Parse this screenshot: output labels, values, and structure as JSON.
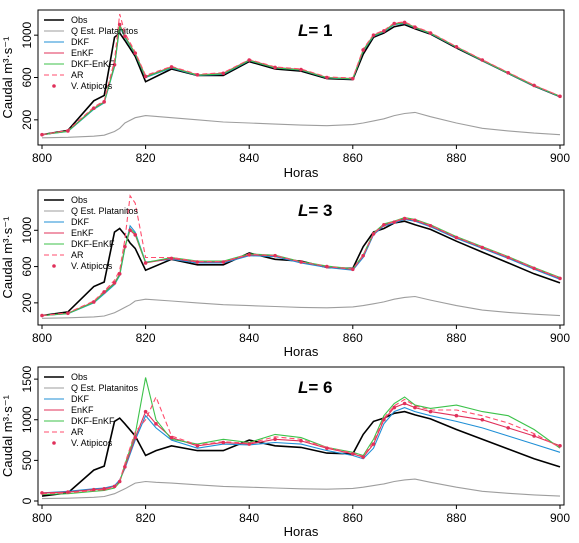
{
  "chart_data": [
    {
      "type": "line",
      "panel_label_var": "L",
      "panel_label_value": "= 1",
      "xlabel": "Horas",
      "ylabel": "Caudal m³·s⁻¹",
      "xlim": [
        800,
        900
      ],
      "ylim": [
        0,
        1200
      ],
      "xticks": [
        800,
        820,
        840,
        860,
        880,
        900
      ],
      "yticks": [
        200,
        600,
        1000
      ],
      "legend_position": "top-left",
      "x": [
        800,
        805,
        810,
        812,
        814,
        815,
        816,
        818,
        820,
        825,
        830,
        835,
        840,
        845,
        850,
        855,
        860,
        862,
        864,
        866,
        868,
        870,
        872,
        875,
        880,
        885,
        890,
        895,
        900
      ],
      "series": [
        {
          "name": "Obs",
          "color": "#000000",
          "dash": "solid",
          "values": [
            60,
            100,
            380,
            430,
            980,
            1020,
            950,
            800,
            560,
            680,
            620,
            620,
            750,
            680,
            660,
            590,
            580,
            820,
            980,
            1020,
            1080,
            1100,
            1060,
            1010,
            880,
            760,
            640,
            520,
            420
          ]
        },
        {
          "name": "Q Est. Platanitos",
          "color": "#9e9e9e",
          "dash": "solid",
          "values": [
            30,
            35,
            45,
            55,
            90,
            120,
            170,
            220,
            240,
            220,
            200,
            180,
            170,
            160,
            150,
            145,
            155,
            170,
            190,
            210,
            240,
            260,
            270,
            230,
            170,
            120,
            95,
            75,
            60
          ]
        },
        {
          "name": "DKF",
          "color": "#1f8fd6",
          "dash": "solid",
          "values": [
            60,
            90,
            300,
            360,
            700,
            1080,
            980,
            820,
            600,
            690,
            620,
            630,
            760,
            690,
            670,
            595,
            585,
            850,
            990,
            1030,
            1100,
            1110,
            1070,
            1015,
            885,
            760,
            640,
            520,
            420
          ]
        },
        {
          "name": "EnKF",
          "color": "#e0305a",
          "dash": "solid",
          "values": [
            60,
            95,
            310,
            370,
            720,
            1100,
            990,
            830,
            610,
            700,
            625,
            640,
            765,
            695,
            675,
            600,
            590,
            860,
            1000,
            1040,
            1110,
            1120,
            1075,
            1020,
            890,
            765,
            645,
            525,
            422
          ]
        },
        {
          "name": "DKF-EnKF",
          "color": "#3cc24a",
          "dash": "solid",
          "values": [
            60,
            92,
            305,
            365,
            710,
            1090,
            985,
            825,
            605,
            695,
            622,
            635,
            762,
            692,
            672,
            598,
            588,
            855,
            995,
            1035,
            1105,
            1115,
            1072,
            1018,
            888,
            762,
            642,
            522,
            421
          ]
        },
        {
          "name": "AR",
          "color": "#ff4d6d",
          "dash": "dashed",
          "values": [
            60,
            100,
            320,
            380,
            760,
            1200,
            1020,
            840,
            620,
            705,
            630,
            645,
            770,
            700,
            680,
            605,
            595,
            870,
            1005,
            1045,
            1115,
            1125,
            1080,
            1025,
            892,
            768,
            648,
            528,
            424
          ]
        },
        {
          "name": "V. Atipicos",
          "color": "#e0305a",
          "dash": "points",
          "values": [
            60,
            95,
            310,
            370,
            720,
            1100,
            990,
            830,
            610,
            700,
            625,
            640,
            765,
            695,
            675,
            600,
            590,
            860,
            1000,
            1040,
            1110,
            1120,
            1075,
            1020,
            890,
            765,
            645,
            525,
            422
          ]
        }
      ]
    },
    {
      "type": "line",
      "panel_label_var": "L",
      "panel_label_value": "= 3",
      "xlabel": "Horas",
      "ylabel": "Caudal m³·s⁻¹",
      "xlim": [
        800,
        900
      ],
      "ylim": [
        0,
        1400
      ],
      "xticks": [
        800,
        820,
        840,
        860,
        880,
        900
      ],
      "yticks": [
        200,
        600,
        1000
      ],
      "legend_position": "top-left",
      "x": [
        800,
        805,
        810,
        812,
        814,
        815,
        816,
        817,
        818,
        820,
        825,
        830,
        835,
        840,
        845,
        850,
        855,
        860,
        862,
        864,
        866,
        868,
        870,
        872,
        875,
        880,
        885,
        890,
        895,
        900
      ],
      "series": [
        {
          "name": "Obs",
          "color": "#000000",
          "dash": "solid",
          "values": [
            60,
            100,
            380,
            430,
            980,
            1020,
            950,
            860,
            800,
            560,
            680,
            620,
            620,
            750,
            680,
            660,
            590,
            580,
            820,
            980,
            1020,
            1080,
            1100,
            1060,
            1010,
            880,
            760,
            640,
            520,
            420
          ]
        },
        {
          "name": "Q Est. Platanitos",
          "color": "#9e9e9e",
          "dash": "solid",
          "values": [
            30,
            35,
            45,
            55,
            90,
            120,
            150,
            180,
            220,
            240,
            220,
            200,
            180,
            170,
            160,
            150,
            145,
            155,
            170,
            190,
            210,
            240,
            260,
            270,
            230,
            170,
            120,
            95,
            75,
            60
          ]
        },
        {
          "name": "DKF",
          "color": "#1f8fd6",
          "dash": "solid",
          "values": [
            60,
            80,
            200,
            300,
            400,
            500,
            800,
            1050,
            980,
            650,
            680,
            640,
            640,
            720,
            710,
            640,
            590,
            560,
            700,
            950,
            1050,
            1080,
            1120,
            1100,
            1040,
            910,
            800,
            690,
            570,
            460
          ]
        },
        {
          "name": "EnKF",
          "color": "#e0305a",
          "dash": "solid",
          "values": [
            60,
            85,
            210,
            320,
            420,
            520,
            820,
            1000,
            950,
            640,
            690,
            650,
            650,
            730,
            720,
            650,
            600,
            570,
            720,
            960,
            1060,
            1090,
            1130,
            1110,
            1050,
            920,
            810,
            700,
            580,
            470
          ]
        },
        {
          "name": "DKF-EnKF",
          "color": "#3cc24a",
          "dash": "solid",
          "values": [
            60,
            82,
            205,
            310,
            410,
            510,
            810,
            1020,
            965,
            645,
            700,
            660,
            660,
            740,
            725,
            655,
            605,
            575,
            730,
            970,
            1070,
            1100,
            1140,
            1120,
            1060,
            930,
            820,
            710,
            590,
            480
          ]
        },
        {
          "name": "AR",
          "color": "#ff4d6d",
          "dash": "dashed",
          "values": [
            60,
            90,
            220,
            330,
            450,
            560,
            900,
            1380,
            1300,
            700,
            700,
            655,
            655,
            735,
            722,
            652,
            602,
            572,
            725,
            965,
            1065,
            1095,
            1135,
            1115,
            1055,
            925,
            815,
            705,
            585,
            475
          ]
        },
        {
          "name": "V. Atipicos",
          "color": "#e0305a",
          "dash": "points",
          "values": [
            60,
            85,
            210,
            320,
            420,
            520,
            820,
            1000,
            950,
            640,
            690,
            650,
            650,
            730,
            720,
            650,
            600,
            570,
            720,
            960,
            1060,
            1090,
            1130,
            1110,
            1050,
            920,
            810,
            700,
            580,
            470
          ]
        }
      ]
    },
    {
      "type": "line",
      "panel_label_var": "L",
      "panel_label_value": "= 6",
      "xlabel": "Horas",
      "ylabel": "Caudal m³·s⁻¹",
      "xlim": [
        800,
        900
      ],
      "ylim": [
        0,
        1600
      ],
      "xticks": [
        800,
        820,
        840,
        860,
        880,
        900
      ],
      "yticks": [
        0,
        500,
        1000,
        1500
      ],
      "legend_position": "top-left",
      "x": [
        800,
        805,
        810,
        812,
        814,
        815,
        816,
        818,
        820,
        822,
        825,
        830,
        835,
        840,
        845,
        850,
        855,
        860,
        862,
        864,
        866,
        868,
        870,
        872,
        875,
        880,
        885,
        890,
        895,
        900
      ],
      "series": [
        {
          "name": "Obs",
          "color": "#000000",
          "dash": "solid",
          "values": [
            60,
            100,
            380,
            430,
            980,
            1020,
            950,
            800,
            560,
            620,
            680,
            620,
            620,
            750,
            680,
            660,
            590,
            580,
            820,
            980,
            1020,
            1080,
            1100,
            1060,
            1010,
            880,
            760,
            640,
            520,
            420
          ]
        },
        {
          "name": "Q Est. Platanitos",
          "color": "#9e9e9e",
          "dash": "solid",
          "values": [
            30,
            35,
            45,
            55,
            90,
            120,
            150,
            220,
            240,
            230,
            220,
            200,
            180,
            170,
            160,
            150,
            145,
            155,
            170,
            190,
            210,
            240,
            260,
            270,
            230,
            170,
            120,
            95,
            75,
            60
          ]
        },
        {
          "name": "DKF",
          "color": "#1f8fd6",
          "dash": "solid",
          "values": [
            100,
            120,
            150,
            160,
            190,
            260,
            400,
            750,
            1050,
            900,
            750,
            650,
            700,
            690,
            720,
            700,
            620,
            560,
            520,
            650,
            950,
            1100,
            1150,
            1100,
            1050,
            980,
            900,
            800,
            700,
            600
          ]
        },
        {
          "name": "EnKF",
          "color": "#e0305a",
          "dash": "solid",
          "values": [
            100,
            110,
            140,
            150,
            180,
            240,
            420,
            780,
            1100,
            950,
            780,
            680,
            720,
            700,
            760,
            740,
            650,
            580,
            540,
            700,
            1000,
            1150,
            1200,
            1150,
            1100,
            1050,
            1000,
            900,
            800,
            680
          ]
        },
        {
          "name": "DKF-EnKF",
          "color": "#3cc24a",
          "dash": "solid",
          "values": [
            80,
            90,
            120,
            130,
            160,
            230,
            450,
            820,
            1520,
            1000,
            760,
            700,
            760,
            720,
            820,
            780,
            660,
            600,
            560,
            760,
            1050,
            1200,
            1280,
            1180,
            1140,
            1180,
            1100,
            1050,
            880,
            650
          ]
        },
        {
          "name": "AR",
          "color": "#ff4d6d",
          "dash": "dashed",
          "values": [
            90,
            100,
            130,
            140,
            170,
            250,
            460,
            850,
            1000,
            1280,
            800,
            690,
            730,
            710,
            790,
            760,
            660,
            590,
            550,
            730,
            1020,
            1170,
            1250,
            1170,
            1120,
            1120,
            1050,
            960,
            830,
            660
          ]
        },
        {
          "name": "V. Atipicos",
          "color": "#e0305a",
          "dash": "points",
          "values": [
            100,
            110,
            140,
            150,
            180,
            240,
            420,
            780,
            1100,
            950,
            780,
            680,
            720,
            700,
            760,
            740,
            650,
            580,
            540,
            700,
            1000,
            1150,
            1200,
            1150,
            1100,
            1050,
            1000,
            900,
            800,
            680
          ]
        }
      ]
    }
  ]
}
